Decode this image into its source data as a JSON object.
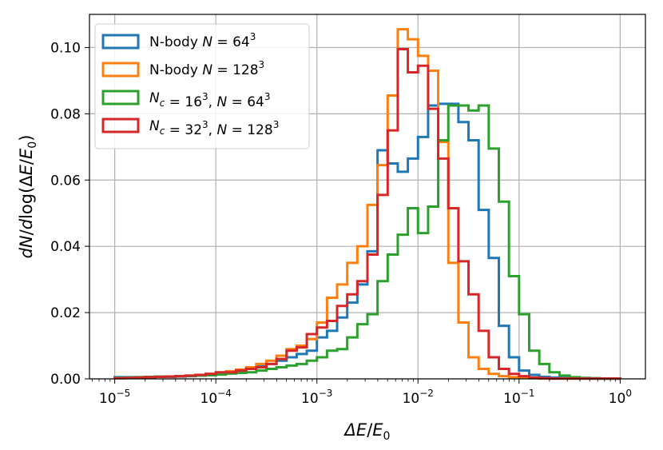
{
  "chart_data": {
    "type": "step-histogram",
    "xscale": "log",
    "xlim_log10": [
      -5.25,
      0.25
    ],
    "ylim": [
      0,
      0.11
    ],
    "xlabel": "ΔE/E₀",
    "ylabel": "dN/dlog(ΔE/E₀)",
    "grid": true,
    "legend_position": "top-left",
    "x_ticks": [
      {
        "exp": -5,
        "base": "10",
        "sup": "−5"
      },
      {
        "exp": -4,
        "base": "10",
        "sup": "−4"
      },
      {
        "exp": -3,
        "base": "10",
        "sup": "−3"
      },
      {
        "exp": -2,
        "base": "10",
        "sup": "−2"
      },
      {
        "exp": -1,
        "base": "10",
        "sup": "−1"
      },
      {
        "exp": 0,
        "base": "10",
        "sup": "0"
      }
    ],
    "y_ticks": [
      {
        "value": 0,
        "label": "0.00"
      },
      {
        "value": 0.02,
        "label": "0.02"
      },
      {
        "value": 0.04,
        "label": "0.04"
      },
      {
        "value": 0.06,
        "label": "0.06"
      },
      {
        "value": 0.08,
        "label": "0.08"
      },
      {
        "value": 0.1,
        "label": "0.10"
      }
    ],
    "bin_edges_log10": {
      "start": -5.0,
      "end": 0.0,
      "count": 50
    },
    "series": [
      {
        "name": "N-body N=64³",
        "color": "#1f77b4",
        "values": [
          0.0005,
          0.0005,
          0.0005,
          0.0005,
          0.0006,
          0.0006,
          0.0007,
          0.0008,
          0.001,
          0.0012,
          0.0016,
          0.002,
          0.0025,
          0.003,
          0.0038,
          0.0045,
          0.0055,
          0.0065,
          0.0075,
          0.0085,
          0.0125,
          0.0145,
          0.0185,
          0.023,
          0.0285,
          0.0385,
          0.069,
          0.065,
          0.0625,
          0.0665,
          0.073,
          0.0825,
          0.083,
          0.083,
          0.0775,
          0.072,
          0.051,
          0.0365,
          0.016,
          0.0065,
          0.0025,
          0.0012,
          0.0006,
          0.0004,
          0.0003,
          0.0002,
          0.0001,
          0.0001,
          0.0001,
          0.0001
        ]
      },
      {
        "name": "N-body N=128³",
        "color": "#ff7f0e",
        "values": [
          0.0002,
          0.0003,
          0.0004,
          0.0005,
          0.0006,
          0.0007,
          0.0008,
          0.001,
          0.0012,
          0.0015,
          0.0018,
          0.0023,
          0.0028,
          0.0035,
          0.0045,
          0.0055,
          0.007,
          0.009,
          0.01,
          0.012,
          0.017,
          0.0245,
          0.0285,
          0.035,
          0.04,
          0.0525,
          0.0645,
          0.0855,
          0.1055,
          0.1025,
          0.0975,
          0.093,
          0.0715,
          0.035,
          0.017,
          0.0065,
          0.003,
          0.0015,
          0.0008,
          0.0005,
          0.0003,
          0.0002,
          0.0001,
          0.0001,
          0.0001,
          0.0001,
          0.0001,
          0.0001,
          0.0001,
          0.0001
        ]
      },
      {
        "name": "Nc=16³, N=64³",
        "color": "#2ca02c",
        "values": [
          0.0003,
          0.0004,
          0.0005,
          0.0006,
          0.0007,
          0.0007,
          0.0008,
          0.0009,
          0.001,
          0.0011,
          0.0013,
          0.0016,
          0.0018,
          0.002,
          0.0025,
          0.003,
          0.0035,
          0.004,
          0.0045,
          0.0055,
          0.0065,
          0.0085,
          0.009,
          0.0125,
          0.0165,
          0.0195,
          0.0295,
          0.0375,
          0.0435,
          0.0515,
          0.044,
          0.052,
          0.072,
          0.0825,
          0.0825,
          0.081,
          0.0825,
          0.0695,
          0.0535,
          0.031,
          0.0195,
          0.0085,
          0.0045,
          0.002,
          0.001,
          0.0005,
          0.0003,
          0.0002,
          0.0001,
          0.0001
        ]
      },
      {
        "name": "Nc=32³, N=128³",
        "color": "#d62728",
        "values": [
          0.0002,
          0.0003,
          0.0004,
          0.0005,
          0.0006,
          0.0007,
          0.0008,
          0.001,
          0.0012,
          0.0015,
          0.002,
          0.002,
          0.0025,
          0.003,
          0.0035,
          0.0045,
          0.006,
          0.0085,
          0.0095,
          0.0135,
          0.0155,
          0.0175,
          0.022,
          0.0255,
          0.0295,
          0.0375,
          0.0555,
          0.075,
          0.0995,
          0.0925,
          0.0945,
          0.0815,
          0.0665,
          0.0515,
          0.0355,
          0.0255,
          0.0145,
          0.0065,
          0.003,
          0.0015,
          0.0008,
          0.0004,
          0.0002,
          0.0001,
          0.0001,
          0.0001,
          0.0001,
          0.0001,
          0.0001,
          0.0001
        ]
      }
    ]
  },
  "legend": {
    "entries": [
      {
        "prefix": "N-body ",
        "var": "N",
        "eq": " = 64",
        "sup": "3",
        "var2": "",
        "eq2": "",
        "sup2": ""
      },
      {
        "prefix": "N-body ",
        "var": "N",
        "eq": " = 128",
        "sup": "3",
        "var2": "",
        "eq2": "",
        "sup2": ""
      },
      {
        "prefix": "",
        "var": "N",
        "sub": "c",
        "eq": " = 16",
        "sup": "3",
        "sep": ", ",
        "var2": "N",
        "eq2": " = 64",
        "sup2": "3"
      },
      {
        "prefix": "",
        "var": "N",
        "sub": "c",
        "eq": " = 32",
        "sup": "3",
        "sep": ", ",
        "var2": "N",
        "eq2": " = 128",
        "sup2": "3"
      }
    ]
  }
}
